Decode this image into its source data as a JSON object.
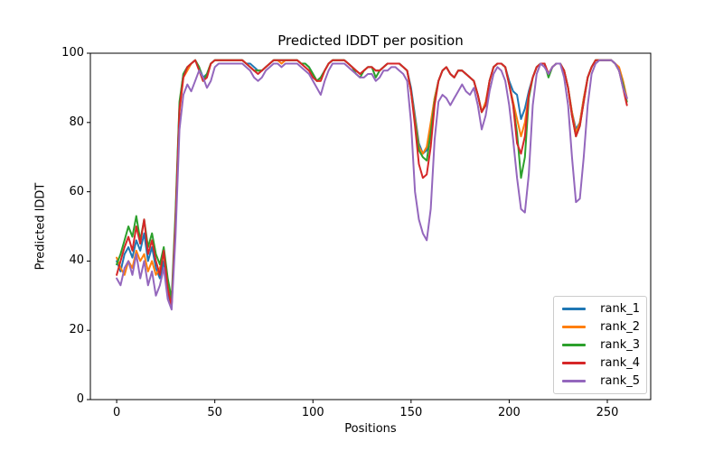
{
  "figure": {
    "title": "Predicted lDDT per position",
    "xlabel": "Positions",
    "ylabel": "Predicted lDDT",
    "background_color": "#ffffff",
    "spine_color": "#000000",
    "legend_border_color": "#cccccc"
  },
  "chart_data": {
    "type": "line",
    "title": "Predicted lDDT per position",
    "xlabel": "Positions",
    "ylabel": "Predicted lDDT",
    "xlim": [
      -13.4,
      272.1
    ],
    "ylim": [
      0,
      100
    ],
    "x_ticks": [
      0,
      50,
      100,
      150,
      200,
      250
    ],
    "y_ticks": [
      0,
      20,
      40,
      60,
      80,
      100
    ],
    "grid": false,
    "legend_position": "lower right",
    "line_width": 2,
    "x": [
      0,
      2,
      4,
      6,
      8,
      10,
      12,
      14,
      16,
      18,
      20,
      22,
      24,
      26,
      28,
      30,
      32,
      34,
      36,
      38,
      40,
      42,
      44,
      46,
      48,
      50,
      52,
      54,
      56,
      58,
      60,
      62,
      64,
      66,
      68,
      70,
      72,
      74,
      76,
      78,
      80,
      82,
      84,
      86,
      88,
      90,
      92,
      94,
      96,
      98,
      100,
      102,
      104,
      106,
      108,
      110,
      112,
      114,
      116,
      118,
      120,
      122,
      124,
      126,
      128,
      130,
      132,
      134,
      136,
      138,
      140,
      142,
      144,
      146,
      148,
      150,
      152,
      154,
      156,
      158,
      160,
      162,
      164,
      166,
      168,
      170,
      172,
      174,
      176,
      178,
      180,
      182,
      184,
      186,
      188,
      190,
      192,
      194,
      196,
      198,
      200,
      202,
      204,
      206,
      208,
      210,
      212,
      214,
      216,
      218,
      220,
      222,
      224,
      226,
      228,
      230,
      232,
      234,
      236,
      238,
      240,
      242,
      244,
      246,
      248,
      250,
      252,
      254,
      256,
      258,
      260
    ],
    "series": [
      {
        "name": "rank_1",
        "color": "#1f77b4",
        "values": [
          40,
          37,
          42,
          44,
          41,
          46,
          43,
          48,
          40,
          44,
          38,
          35,
          40,
          31,
          27,
          52,
          85,
          94,
          96,
          97,
          98,
          96,
          93,
          94,
          97,
          98,
          98,
          98,
          98,
          98,
          98,
          98,
          98,
          97,
          97,
          96,
          95,
          95,
          96,
          97,
          98,
          98,
          98,
          98,
          98,
          98,
          98,
          97,
          97,
          96,
          94,
          92,
          93,
          95,
          97,
          98,
          98,
          98,
          98,
          97,
          96,
          95,
          94,
          95,
          96,
          96,
          95,
          95,
          96,
          97,
          97,
          97,
          97,
          96,
          95,
          90,
          82,
          74,
          71,
          72,
          79,
          87,
          92,
          95,
          96,
          94,
          93,
          95,
          95,
          94,
          93,
          92,
          88,
          83,
          85,
          92,
          96,
          97,
          97,
          96,
          92,
          89,
          88,
          81,
          84,
          89,
          93,
          96,
          97,
          97,
          94,
          96,
          97,
          97,
          95,
          90,
          83,
          78,
          80,
          87,
          93,
          96,
          98,
          98,
          98,
          98,
          98,
          97,
          95,
          91,
          87
        ]
      },
      {
        "name": "rank_2",
        "color": "#ff7f0e",
        "values": [
          41,
          38,
          36,
          40,
          38,
          43,
          40,
          42,
          37,
          40,
          36,
          38,
          42,
          33,
          28,
          50,
          83,
          93,
          95,
          97,
          98,
          96,
          92,
          94,
          97,
          98,
          98,
          98,
          98,
          98,
          98,
          98,
          98,
          97,
          96,
          95,
          95,
          95,
          96,
          97,
          98,
          98,
          97,
          98,
          98,
          98,
          98,
          97,
          96,
          95,
          94,
          92,
          92,
          95,
          97,
          98,
          98,
          98,
          98,
          97,
          96,
          95,
          94,
          95,
          96,
          96,
          95,
          95,
          96,
          97,
          97,
          97,
          97,
          96,
          95,
          89,
          81,
          73,
          71,
          73,
          80,
          87,
          92,
          95,
          96,
          94,
          93,
          95,
          95,
          94,
          93,
          92,
          88,
          83,
          86,
          92,
          96,
          97,
          97,
          96,
          91,
          86,
          81,
          76,
          80,
          88,
          93,
          96,
          97,
          97,
          94,
          96,
          97,
          97,
          95,
          90,
          83,
          77,
          80,
          87,
          93,
          96,
          98,
          98,
          98,
          98,
          98,
          97,
          96,
          92,
          87
        ]
      },
      {
        "name": "rank_3",
        "color": "#2ca02c",
        "values": [
          39,
          42,
          46,
          50,
          47,
          53,
          46,
          52,
          44,
          48,
          42,
          39,
          44,
          35,
          29,
          54,
          86,
          94,
          96,
          97,
          98,
          96,
          92,
          94,
          97,
          98,
          98,
          98,
          98,
          98,
          98,
          98,
          98,
          97,
          96,
          95,
          95,
          95,
          96,
          97,
          98,
          98,
          98,
          98,
          98,
          98,
          98,
          97,
          97,
          96,
          94,
          92,
          93,
          95,
          97,
          98,
          98,
          98,
          98,
          97,
          96,
          94,
          93,
          95,
          96,
          96,
          93,
          95,
          96,
          97,
          97,
          97,
          97,
          96,
          95,
          89,
          80,
          72,
          70,
          69,
          77,
          86,
          92,
          95,
          96,
          94,
          93,
          95,
          95,
          94,
          93,
          92,
          88,
          83,
          85,
          92,
          96,
          97,
          97,
          96,
          91,
          85,
          77,
          64,
          70,
          87,
          93,
          96,
          97,
          97,
          93,
          96,
          97,
          97,
          95,
          90,
          82,
          76,
          79,
          86,
          93,
          96,
          98,
          98,
          98,
          98,
          98,
          97,
          95,
          91,
          86
        ]
      },
      {
        "name": "rank_4",
        "color": "#d62728",
        "values": [
          36,
          40,
          44,
          47,
          43,
          50,
          45,
          52,
          42,
          46,
          40,
          36,
          43,
          32,
          27,
          51,
          84,
          93,
          96,
          97,
          98,
          95,
          92,
          93,
          97,
          98,
          98,
          98,
          98,
          98,
          98,
          98,
          98,
          97,
          96,
          95,
          94,
          95,
          96,
          97,
          98,
          98,
          98,
          98,
          98,
          98,
          98,
          97,
          96,
          95,
          93,
          92,
          92,
          95,
          97,
          98,
          98,
          98,
          98,
          97,
          96,
          95,
          94,
          95,
          96,
          96,
          95,
          95,
          96,
          97,
          97,
          97,
          97,
          96,
          95,
          89,
          79,
          68,
          64,
          65,
          73,
          85,
          92,
          95,
          96,
          94,
          93,
          95,
          95,
          94,
          93,
          92,
          88,
          83,
          85,
          92,
          96,
          97,
          97,
          96,
          91,
          85,
          74,
          71,
          76,
          88,
          93,
          96,
          97,
          97,
          94,
          96,
          97,
          97,
          95,
          90,
          82,
          76,
          79,
          86,
          93,
          96,
          98,
          98,
          98,
          98,
          98,
          97,
          95,
          90,
          85
        ]
      },
      {
        "name": "rank_5",
        "color": "#9467bd",
        "values": [
          35,
          33,
          38,
          40,
          36,
          42,
          35,
          40,
          33,
          37,
          30,
          33,
          38,
          29,
          26,
          47,
          78,
          88,
          91,
          89,
          92,
          95,
          93,
          90,
          92,
          96,
          97,
          97,
          97,
          97,
          97,
          97,
          97,
          96,
          95,
          93,
          92,
          93,
          95,
          96,
          97,
          97,
          96,
          97,
          97,
          97,
          97,
          96,
          95,
          94,
          92,
          90,
          88,
          92,
          95,
          97,
          97,
          97,
          97,
          96,
          95,
          94,
          93,
          93,
          94,
          94,
          92,
          93,
          95,
          95,
          96,
          96,
          95,
          94,
          92,
          80,
          60,
          52,
          48,
          46,
          55,
          75,
          86,
          88,
          87,
          85,
          87,
          89,
          91,
          89,
          88,
          90,
          85,
          78,
          82,
          89,
          94,
          96,
          95,
          92,
          85,
          75,
          64,
          55,
          54,
          65,
          85,
          94,
          97,
          96,
          94,
          96,
          97,
          97,
          93,
          85,
          70,
          57,
          58,
          70,
          85,
          94,
          97,
          98,
          98,
          98,
          98,
          97,
          95,
          90,
          87
        ]
      }
    ]
  }
}
